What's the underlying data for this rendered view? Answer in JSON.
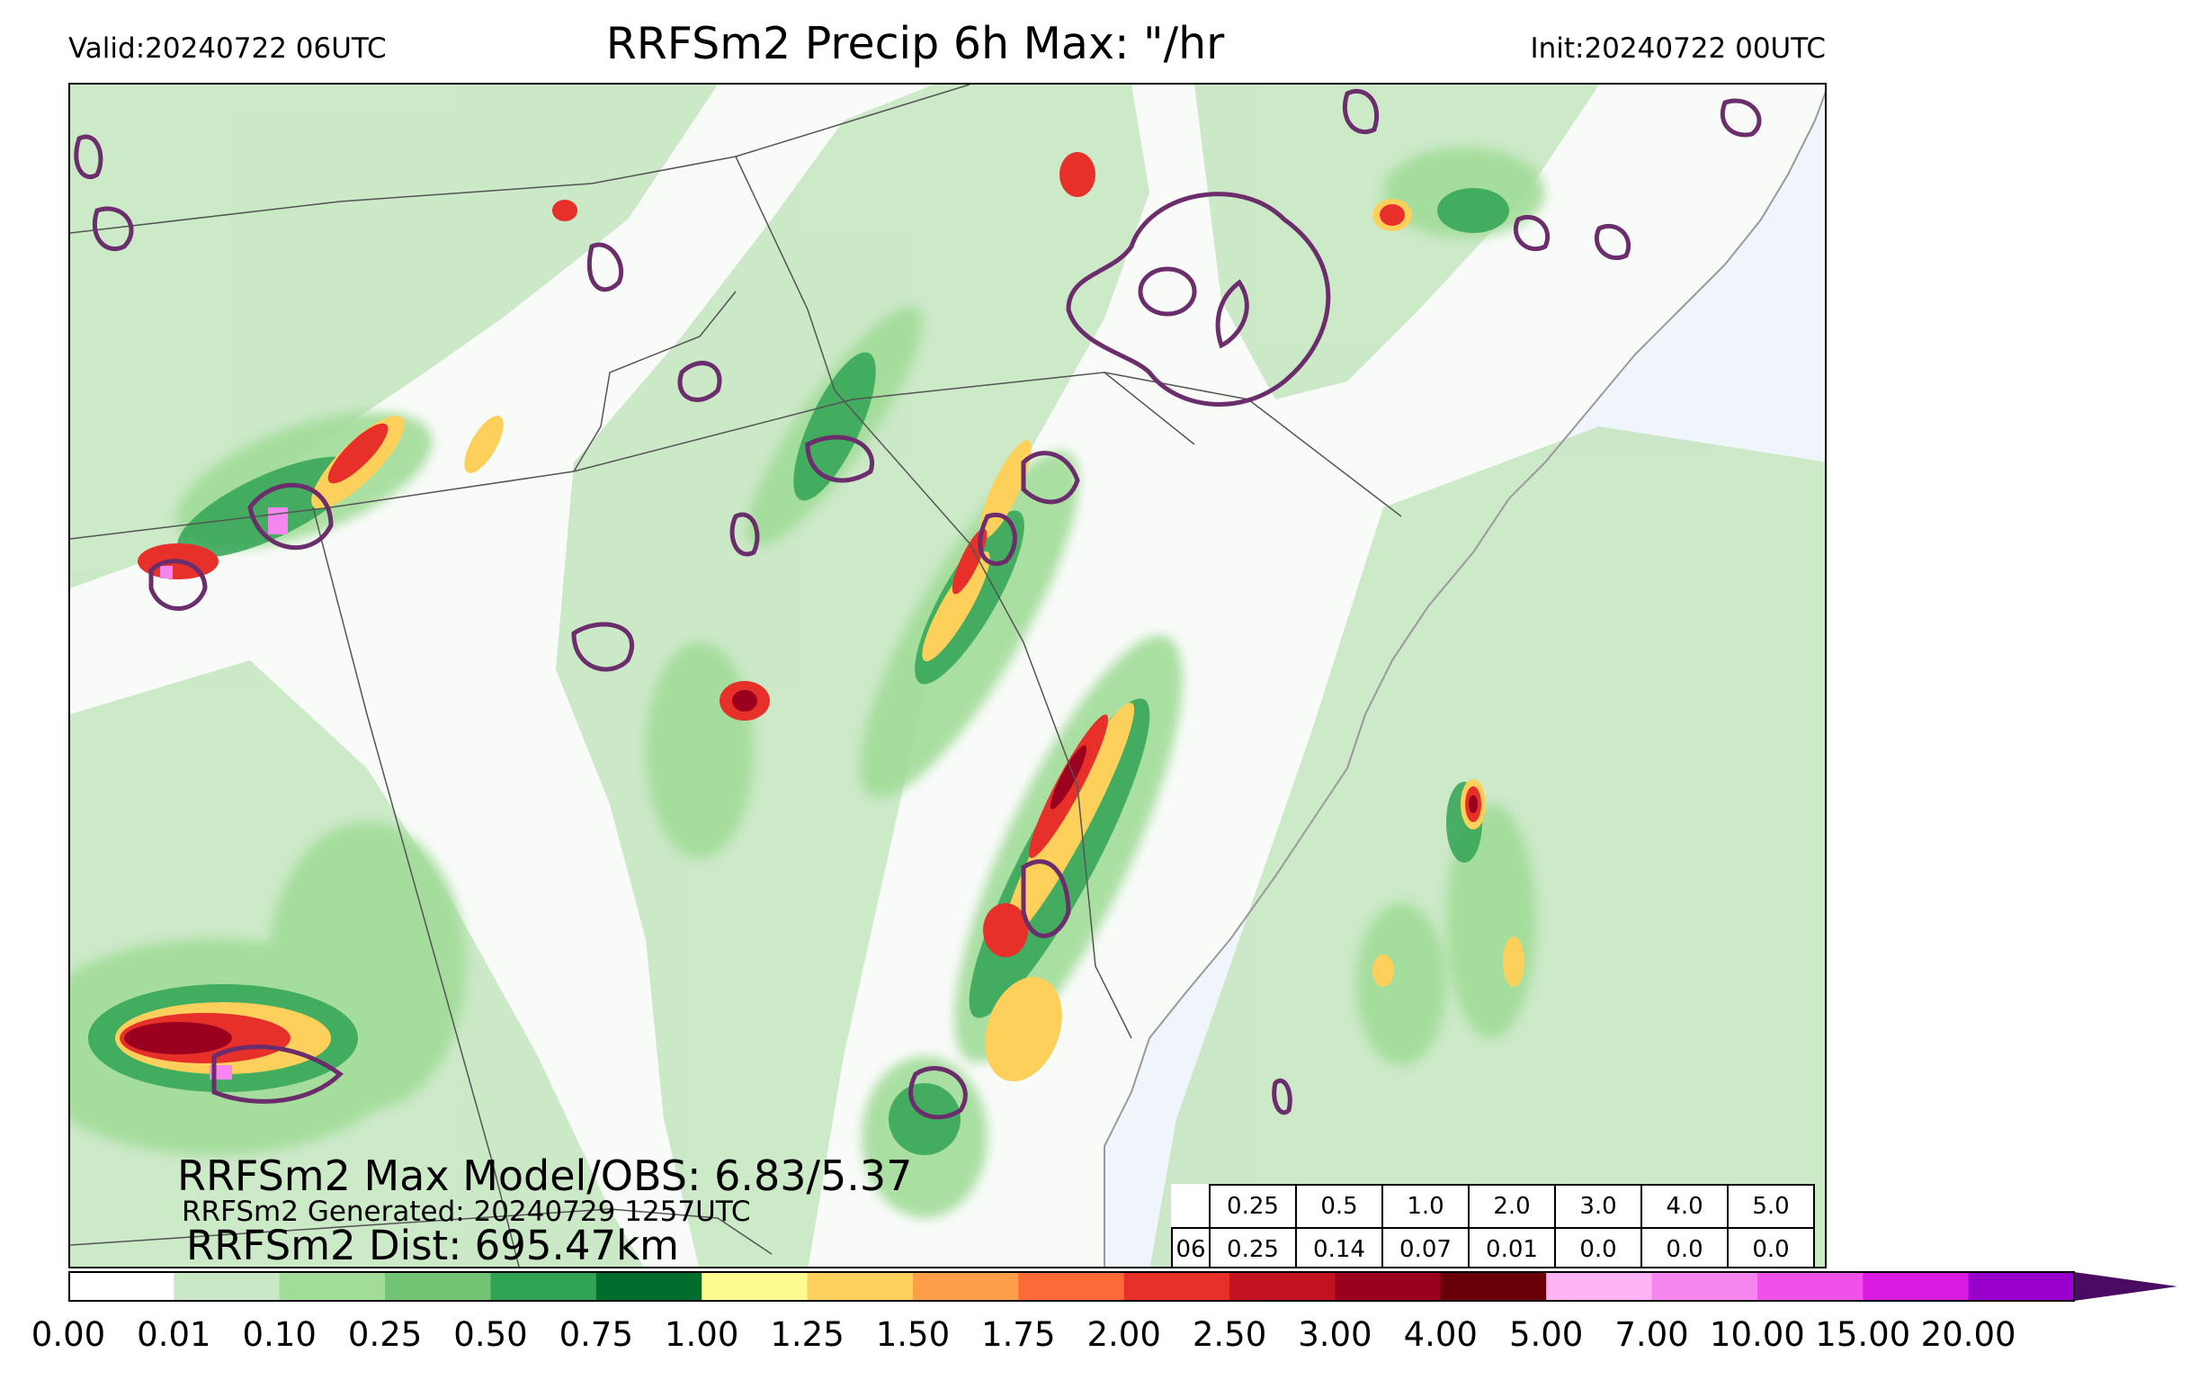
{
  "header": {
    "valid": "Valid:20240722 06UTC",
    "title": "RRFSm2 Precip 6h Max: \"/hr",
    "init": "Init:20240722 00UTC"
  },
  "stats": {
    "max_model_obs": "RRFSm2 Max Model/OBS: 6.83/5.37",
    "generated": "RRFSm2 Generated: 20240729 1257UTC",
    "distance": "RRFSm2 Dist: 695.47km"
  },
  "threshold_table": {
    "headers": [
      "0.25",
      "0.5",
      "1.0",
      "2.0",
      "3.0",
      "4.0",
      "5.0"
    ],
    "row_label": "06",
    "values": [
      "0.25",
      "0.14",
      "0.07",
      "0.01",
      "0.0",
      "0.0",
      "0.0"
    ]
  },
  "colorbar": {
    "ticks": [
      "0.00",
      "0.01",
      "0.10",
      "0.25",
      "0.50",
      "0.75",
      "1.00",
      "1.25",
      "1.50",
      "1.75",
      "2.00",
      "2.50",
      "3.00",
      "4.00",
      "5.00",
      "7.00",
      "10.00",
      "15.00",
      "20.00"
    ],
    "colors": [
      "#ffffff",
      "#c9e8c5",
      "#a1dc98",
      "#74c476",
      "#31a354",
      "#006d2c",
      "#fefa92",
      "#fdd05b",
      "#fd9e48",
      "#fc6b37",
      "#e7302a",
      "#c3121f",
      "#9b001e",
      "#690008",
      "#fdb3f5",
      "#f785f0",
      "#f052e9",
      "#d81be0",
      "#9a00cc"
    ],
    "extend_color": "#4a0b63"
  },
  "colors": {
    "land": "#f9fbf9",
    "ocean": "#f0f4fb",
    "obs_contour": "#6b2d6b",
    "border": "#555555",
    "coast": "#9a9a9a"
  }
}
